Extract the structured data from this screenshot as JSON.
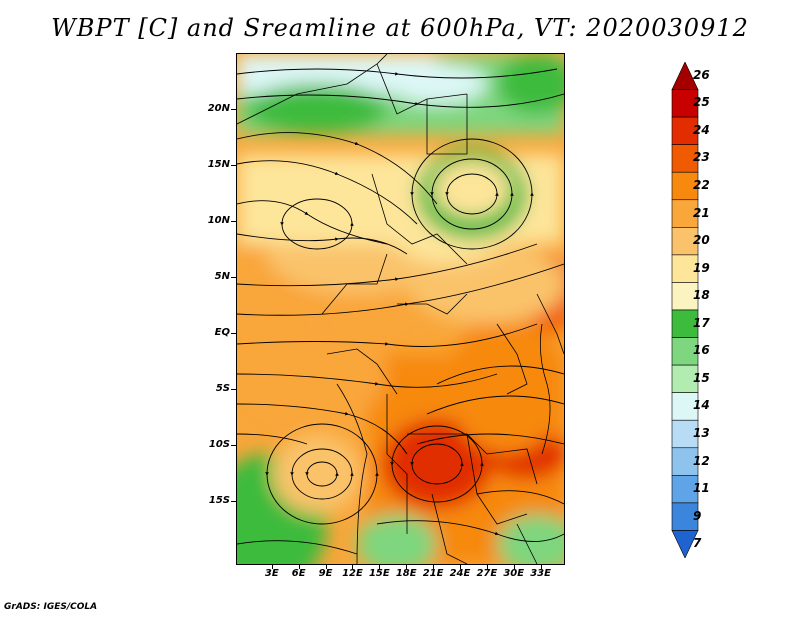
{
  "title": "WBPT [C] and Sreamline at 600hPa, VT: 2020030912",
  "footer": "GrADS: IGES/COLA",
  "map": {
    "lon_range": [
      -1,
      35.5
    ],
    "lat_range": [
      -20.5,
      25
    ],
    "lat_ticks": [
      {
        "value": 20,
        "label": "20N"
      },
      {
        "value": 15,
        "label": "15N"
      },
      {
        "value": 10,
        "label": "10N"
      },
      {
        "value": 5,
        "label": "5N"
      },
      {
        "value": 0,
        "label": "EQ"
      },
      {
        "value": -5,
        "label": "5S"
      },
      {
        "value": -10,
        "label": "10S"
      },
      {
        "value": -15,
        "label": "15S"
      }
    ],
    "lon_ticks": [
      {
        "value": 3,
        "label": "3E"
      },
      {
        "value": 6,
        "label": "6E"
      },
      {
        "value": 9,
        "label": "9E"
      },
      {
        "value": 12,
        "label": "12E"
      },
      {
        "value": 15,
        "label": "15E"
      },
      {
        "value": 18,
        "label": "18E"
      },
      {
        "value": 21,
        "label": "21E"
      },
      {
        "value": 24,
        "label": "24E"
      },
      {
        "value": 27,
        "label": "27E"
      },
      {
        "value": 30,
        "label": "30E"
      },
      {
        "value": 33,
        "label": "33E"
      }
    ]
  },
  "colorbar": {
    "labels": [
      "26",
      "25",
      "24",
      "23",
      "22",
      "21",
      "20",
      "19",
      "18",
      "17",
      "16",
      "15",
      "14",
      "13",
      "12",
      "11",
      "9",
      "7"
    ],
    "colors": [
      "#a50000",
      "#c80000",
      "#e12d00",
      "#f05a00",
      "#f7890f",
      "#f9a63a",
      "#fac36b",
      "#fde59a",
      "#fbf3c0",
      "#3dbb3d",
      "#7ed67e",
      "#b2ecb0",
      "#ddf7f7",
      "#b8dcf5",
      "#8ec3ee",
      "#5fa4e6",
      "#3b86dc",
      "#1f63d0"
    ]
  }
}
